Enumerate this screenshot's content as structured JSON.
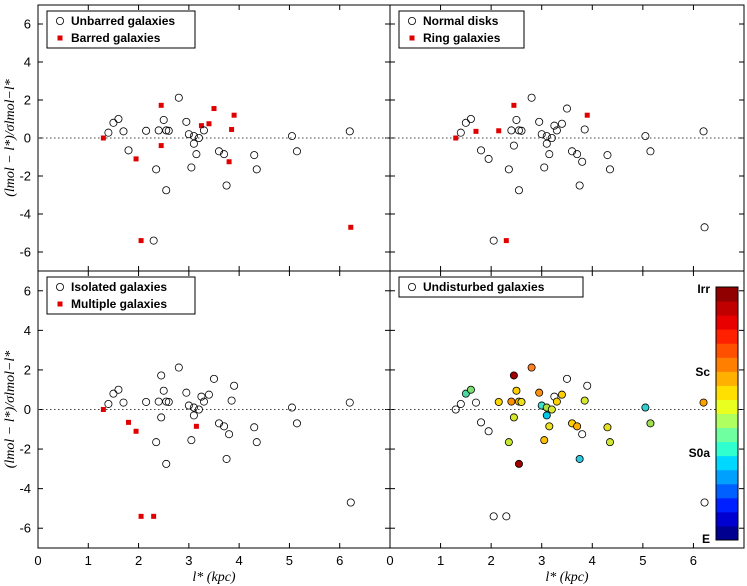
{
  "chart_data": {
    "type": "scatter",
    "xlabel": "l* (kpc)",
    "ylabel": "(lmol − l*)/σlmol−l*",
    "xlim": [
      0,
      7
    ],
    "ylim": [
      -7,
      7
    ],
    "x_ticks": [
      0,
      1,
      2,
      3,
      4,
      5,
      6
    ],
    "y_ticks": [
      6,
      4,
      2,
      0,
      -2,
      -4,
      -6
    ],
    "reference_line_y": 0,
    "points": [
      {
        "x": 1.3,
        "y": 0.0,
        "barred": true,
        "ring": true,
        "multiple": true,
        "color": null
      },
      {
        "x": 1.4,
        "y": 0.28,
        "barred": false,
        "ring": false,
        "multiple": false,
        "color": null
      },
      {
        "x": 1.5,
        "y": 0.8,
        "barred": false,
        "ring": false,
        "multiple": false,
        "color": "#4ad8a0"
      },
      {
        "x": 1.6,
        "y": 1.0,
        "barred": false,
        "ring": false,
        "multiple": false,
        "color": "#7ae070"
      },
      {
        "x": 1.7,
        "y": 0.35,
        "barred": false,
        "ring": true,
        "multiple": false,
        "color": null
      },
      {
        "x": 1.8,
        "y": -0.65,
        "barred": false,
        "ring": false,
        "multiple": true,
        "color": null
      },
      {
        "x": 1.95,
        "y": -1.1,
        "barred": true,
        "ring": false,
        "multiple": true,
        "color": null
      },
      {
        "x": 2.05,
        "y": -5.4,
        "barred": true,
        "ring": false,
        "multiple": true,
        "color": null
      },
      {
        "x": 2.15,
        "y": 0.38,
        "barred": false,
        "ring": true,
        "multiple": false,
        "color": "#ffd700"
      },
      {
        "x": 2.3,
        "y": -5.4,
        "barred": false,
        "ring": true,
        "multiple": true,
        "color": null
      },
      {
        "x": 2.35,
        "y": -1.65,
        "barred": false,
        "ring": false,
        "multiple": false,
        "color": "#c6e830"
      },
      {
        "x": 2.4,
        "y": 0.4,
        "barred": false,
        "ring": false,
        "multiple": false,
        "color": "#ff9000"
      },
      {
        "x": 2.45,
        "y": -0.4,
        "barred": true,
        "ring": false,
        "multiple": false,
        "color": "#d6e82a"
      },
      {
        "x": 2.45,
        "y": 1.72,
        "barred": true,
        "ring": true,
        "multiple": false,
        "color": "#a00000"
      },
      {
        "x": 2.5,
        "y": 0.95,
        "barred": false,
        "ring": false,
        "multiple": false,
        "color": "#ffd000"
      },
      {
        "x": 2.55,
        "y": 0.4,
        "barred": false,
        "ring": false,
        "multiple": false,
        "color": "#ffc000"
      },
      {
        "x": 2.55,
        "y": -2.75,
        "barred": false,
        "ring": false,
        "multiple": false,
        "color": "#a00000"
      },
      {
        "x": 2.6,
        "y": 0.38,
        "barred": false,
        "ring": false,
        "multiple": false,
        "color": "#e8e020"
      },
      {
        "x": 2.8,
        "y": 2.12,
        "barred": false,
        "ring": false,
        "multiple": false,
        "color": "#ff8020"
      },
      {
        "x": 2.95,
        "y": 0.85,
        "barred": false,
        "ring": false,
        "multiple": false,
        "color": "#ff9010"
      },
      {
        "x": 3.0,
        "y": 0.2,
        "barred": false,
        "ring": false,
        "multiple": false,
        "color": "#40e0d0"
      },
      {
        "x": 3.05,
        "y": -1.55,
        "barred": false,
        "ring": false,
        "multiple": false,
        "color": "#ffc000"
      },
      {
        "x": 3.1,
        "y": 0.1,
        "barred": false,
        "ring": false,
        "multiple": false,
        "color": "#b0e040"
      },
      {
        "x": 3.1,
        "y": -0.3,
        "barred": false,
        "ring": false,
        "multiple": false,
        "color": "#00c8e8"
      },
      {
        "x": 3.15,
        "y": -0.85,
        "barred": false,
        "ring": false,
        "multiple": true,
        "color": "#e8e020"
      },
      {
        "x": 3.2,
        "y": 0.0,
        "barred": false,
        "ring": false,
        "multiple": false,
        "color": "#d8e830"
      },
      {
        "x": 3.25,
        "y": 0.65,
        "barred": true,
        "ring": false,
        "multiple": false,
        "color": null
      },
      {
        "x": 3.3,
        "y": 0.4,
        "barred": false,
        "ring": false,
        "multiple": false,
        "color": "#ffd000"
      },
      {
        "x": 3.4,
        "y": 0.75,
        "barred": true,
        "ring": false,
        "multiple": false,
        "color": "#ffd000"
      },
      {
        "x": 3.5,
        "y": 1.55,
        "barred": true,
        "ring": false,
        "multiple": false,
        "color": null
      },
      {
        "x": 3.6,
        "y": -0.7,
        "barred": false,
        "ring": false,
        "multiple": false,
        "color": "#ffd000"
      },
      {
        "x": 3.7,
        "y": -0.85,
        "barred": false,
        "ring": false,
        "multiple": false,
        "color": "#ffb000"
      },
      {
        "x": 3.75,
        "y": -2.5,
        "barred": false,
        "ring": false,
        "multiple": false,
        "color": "#30c8e0"
      },
      {
        "x": 3.8,
        "y": -1.25,
        "barred": true,
        "ring": false,
        "multiple": false,
        "color": null
      },
      {
        "x": 3.85,
        "y": 0.45,
        "barred": true,
        "ring": false,
        "multiple": false,
        "color": "#d8e830"
      },
      {
        "x": 3.9,
        "y": 1.2,
        "barred": true,
        "ring": true,
        "multiple": false,
        "color": null
      },
      {
        "x": 4.3,
        "y": -0.9,
        "barred": false,
        "ring": false,
        "multiple": false,
        "color": "#e8e020"
      },
      {
        "x": 4.35,
        "y": -1.65,
        "barred": false,
        "ring": false,
        "multiple": false,
        "color": "#d0e830"
      },
      {
        "x": 5.05,
        "y": 0.1,
        "barred": false,
        "ring": false,
        "multiple": false,
        "color": "#30d0d0"
      },
      {
        "x": 5.15,
        "y": -0.7,
        "barred": false,
        "ring": false,
        "multiple": false,
        "color": "#a0e050"
      },
      {
        "x": 6.2,
        "y": 0.35,
        "barred": false,
        "ring": false,
        "multiple": false,
        "color": "#ffa000"
      },
      {
        "x": 6.22,
        "y": -4.7,
        "barred": true,
        "ring": false,
        "multiple": false,
        "color": null
      }
    ],
    "panels": [
      {
        "id": "top-left",
        "legend": [
          "Unbarred galaxies",
          "Barred galaxies"
        ],
        "flag": "barred"
      },
      {
        "id": "top-right",
        "legend": [
          "Normal disks",
          "Ring galaxies"
        ],
        "flag": "ring"
      },
      {
        "id": "bottom-left",
        "legend": [
          "Isolated galaxies",
          "Multiple galaxies"
        ],
        "flag": "multiple"
      },
      {
        "id": "bottom-right",
        "legend": [
          "Undisturbed galaxies"
        ],
        "flag": "color"
      }
    ],
    "colorbar": {
      "labels": [
        "Irr",
        "Sc",
        "S0a",
        "E"
      ],
      "colors": [
        "#000090",
        "#0000d0",
        "#0020ff",
        "#0060ff",
        "#00a0ff",
        "#00d8ff",
        "#30ffd0",
        "#70ffa0",
        "#b0ff60",
        "#e8ff20",
        "#ffe000",
        "#ffb000",
        "#ff8000",
        "#ff5000",
        "#ff2000",
        "#e80000",
        "#c00000",
        "#900000"
      ]
    }
  }
}
